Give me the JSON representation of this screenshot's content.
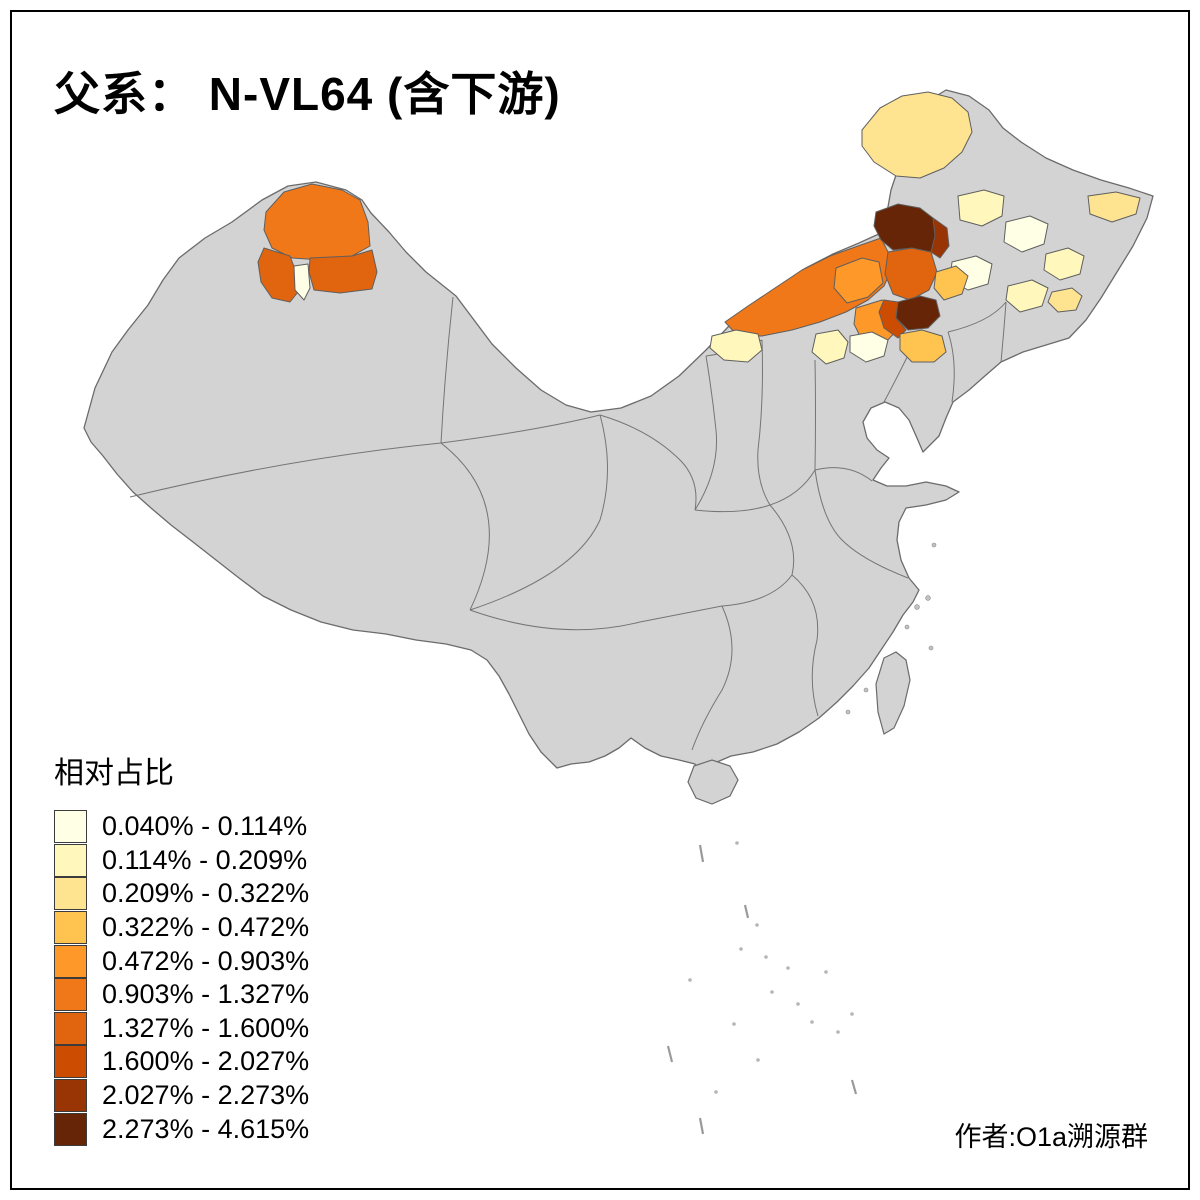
{
  "title": "父系： N-VL64 (含下游)",
  "author": "作者:O1a溯源群",
  "legend": {
    "title": "相对占比",
    "classes": [
      {
        "label": "0.040% - 0.114%",
        "color": "#FFFFE5"
      },
      {
        "label": "0.114% - 0.209%",
        "color": "#FFF7BC"
      },
      {
        "label": "0.209% - 0.322%",
        "color": "#FEE391"
      },
      {
        "label": "0.322% - 0.472%",
        "color": "#FEC44F"
      },
      {
        "label": "0.472% - 0.903%",
        "color": "#FE9929"
      },
      {
        "label": "0.903% - 1.327%",
        "color": "#F07818"
      },
      {
        "label": "1.327% - 1.600%",
        "color": "#E1640E"
      },
      {
        "label": "1.600% - 2.027%",
        "color": "#CC4C02"
      },
      {
        "label": "2.027% - 2.273%",
        "color": "#993404"
      },
      {
        "label": "2.273% - 4.615%",
        "color": "#662506"
      }
    ]
  },
  "map": {
    "base_fill": "#D3D3D3",
    "border_color": "#6B6B6B",
    "background": "#FFFFFF",
    "regions": [
      {
        "id": "northwest-top",
        "class_index": 5
      },
      {
        "id": "northwest-lower-left",
        "class_index": 6
      },
      {
        "id": "northwest-sliver",
        "class_index": 0
      },
      {
        "id": "northwest-lower-right",
        "class_index": 6
      },
      {
        "id": "north-band-main",
        "class_index": 5
      },
      {
        "id": "north-band-patch-a",
        "class_index": 4
      },
      {
        "id": "north-band-patch-b",
        "class_index": 4
      },
      {
        "id": "north-band-east",
        "class_index": 6
      },
      {
        "id": "northeast-dark-core",
        "class_index": 9
      },
      {
        "id": "northeast-dark-east",
        "class_index": 8
      },
      {
        "id": "northeast-dark-south",
        "class_index": 9
      },
      {
        "id": "northeast-dark-south-ring",
        "class_index": 7
      },
      {
        "id": "east-of-band-patch",
        "class_index": 3
      },
      {
        "id": "north-pale-west",
        "class_index": 1
      },
      {
        "id": "north-pale-mid",
        "class_index": 1
      },
      {
        "id": "north-pale-east",
        "class_index": 0
      },
      {
        "id": "far-north-main",
        "class_index": 2
      },
      {
        "id": "far-northeast-corner",
        "class_index": 2
      },
      {
        "id": "ne-patch-a",
        "class_index": 1
      },
      {
        "id": "ne-patch-b",
        "class_index": 0
      },
      {
        "id": "ne-patch-c",
        "class_index": 1
      },
      {
        "id": "ne-patch-d",
        "class_index": 0
      },
      {
        "id": "ne-patch-e",
        "class_index": 1
      },
      {
        "id": "ne-patch-f",
        "class_index": 2
      },
      {
        "id": "ne-patch-g",
        "class_index": 3
      }
    ]
  }
}
